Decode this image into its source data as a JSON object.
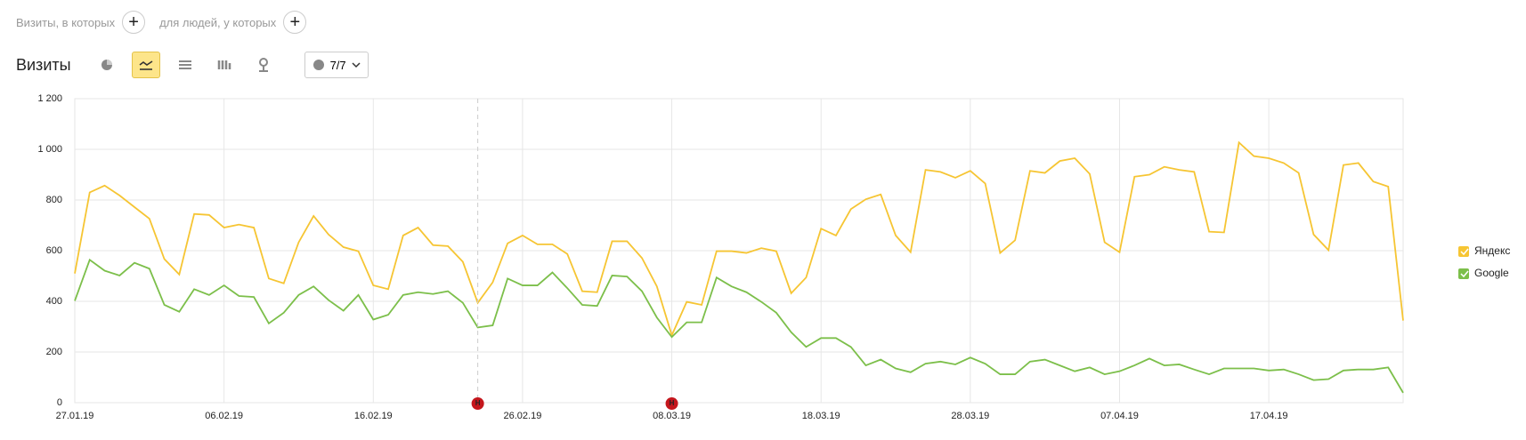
{
  "filters": {
    "visits_label": "Визиты, в которых",
    "people_label": "для людей, у которых"
  },
  "toolbar": {
    "title": "Визиты",
    "notes_selector": "7/7"
  },
  "chart_data": {
    "type": "line",
    "categories": [
      "27.01.19",
      null,
      null,
      null,
      null,
      null,
      null,
      null,
      null,
      null,
      "06.02.19",
      null,
      null,
      null,
      null,
      null,
      null,
      null,
      null,
      null,
      "16.02.19",
      null,
      null,
      null,
      null,
      null,
      null,
      null,
      null,
      null,
      "26.02.19",
      null,
      null,
      null,
      null,
      null,
      null,
      null,
      null,
      null,
      "08.03.19",
      null,
      null,
      null,
      null,
      null,
      null,
      null,
      null,
      null,
      "18.03.19",
      null,
      null,
      null,
      null,
      null,
      null,
      null,
      null,
      null,
      "28.03.19",
      null,
      null,
      null,
      null,
      null,
      null,
      null,
      null,
      null,
      "07.04.19",
      null,
      null,
      null,
      null,
      null,
      null,
      null,
      null,
      null,
      "17.04.19",
      null,
      null,
      null,
      null,
      null,
      null,
      null,
      null,
      null
    ],
    "weekend_color": "#c4161c",
    "weekend_categories": [
      0,
      20,
      70
    ],
    "series": [
      {
        "name": "Яндекс",
        "color": "#f6c533",
        "values": [
          510,
          830,
          857,
          818,
          772,
          726,
          567,
          506,
          745,
          741,
          691,
          703,
          691,
          490,
          471,
          633,
          737,
          664,
          614,
          598,
          463,
          448,
          660,
          691,
          622,
          618,
          556,
          394,
          475,
          629,
          660,
          625,
          625,
          587,
          440,
          436,
          637,
          637,
          571,
          459,
          266,
          398,
          386,
          598,
          598,
          591,
          610,
          598,
          432,
          494,
          687,
          660,
          764,
          803,
          822,
          660,
          594,
          919,
          911,
          888,
          915,
          865,
          591,
          641,
          915,
          907,
          954,
          965,
          903,
          633,
          594,
          892,
          900,
          931,
          919,
          911,
          675,
          672,
          1027,
          973,
          965,
          946,
          907,
          664,
          602,
          938,
          946,
          873,
          853,
          324
        ]
      },
      {
        "name": "Google",
        "color": "#7cbf4a",
        "values": [
          402,
          564,
          521,
          502,
          552,
          529,
          386,
          359,
          448,
          425,
          463,
          421,
          417,
          313,
          355,
          425,
          459,
          405,
          363,
          425,
          328,
          347,
          425,
          436,
          429,
          440,
          394,
          297,
          305,
          490,
          463,
          463,
          514,
          452,
          386,
          382,
          502,
          498,
          440,
          336,
          259,
          317,
          317,
          494,
          459,
          436,
          398,
          355,
          278,
          220,
          255,
          255,
          220,
          147,
          170,
          135,
          120,
          154,
          162,
          151,
          178,
          154,
          112,
          112,
          162,
          170,
          147,
          124,
          139,
          112,
          124,
          147,
          174,
          147,
          151,
          131,
          112,
          135,
          135,
          135,
          127,
          131,
          112,
          89,
          93,
          127,
          131,
          131,
          139,
          39
        ]
      }
    ],
    "ylim": [
      0,
      1200
    ],
    "yticks": [
      0,
      200,
      400,
      600,
      800,
      {
        "value": 1000,
        "label": "1 000"
      },
      {
        "value": 1200,
        "label": "1 200"
      }
    ],
    "grid": true,
    "annotations": [
      {
        "label": "Н",
        "index": 27,
        "color": "#c4161c",
        "dashed": true
      },
      {
        "label": "Н",
        "index": 40,
        "color": "#c4161c",
        "dashed": false
      }
    ],
    "legend": "right"
  }
}
